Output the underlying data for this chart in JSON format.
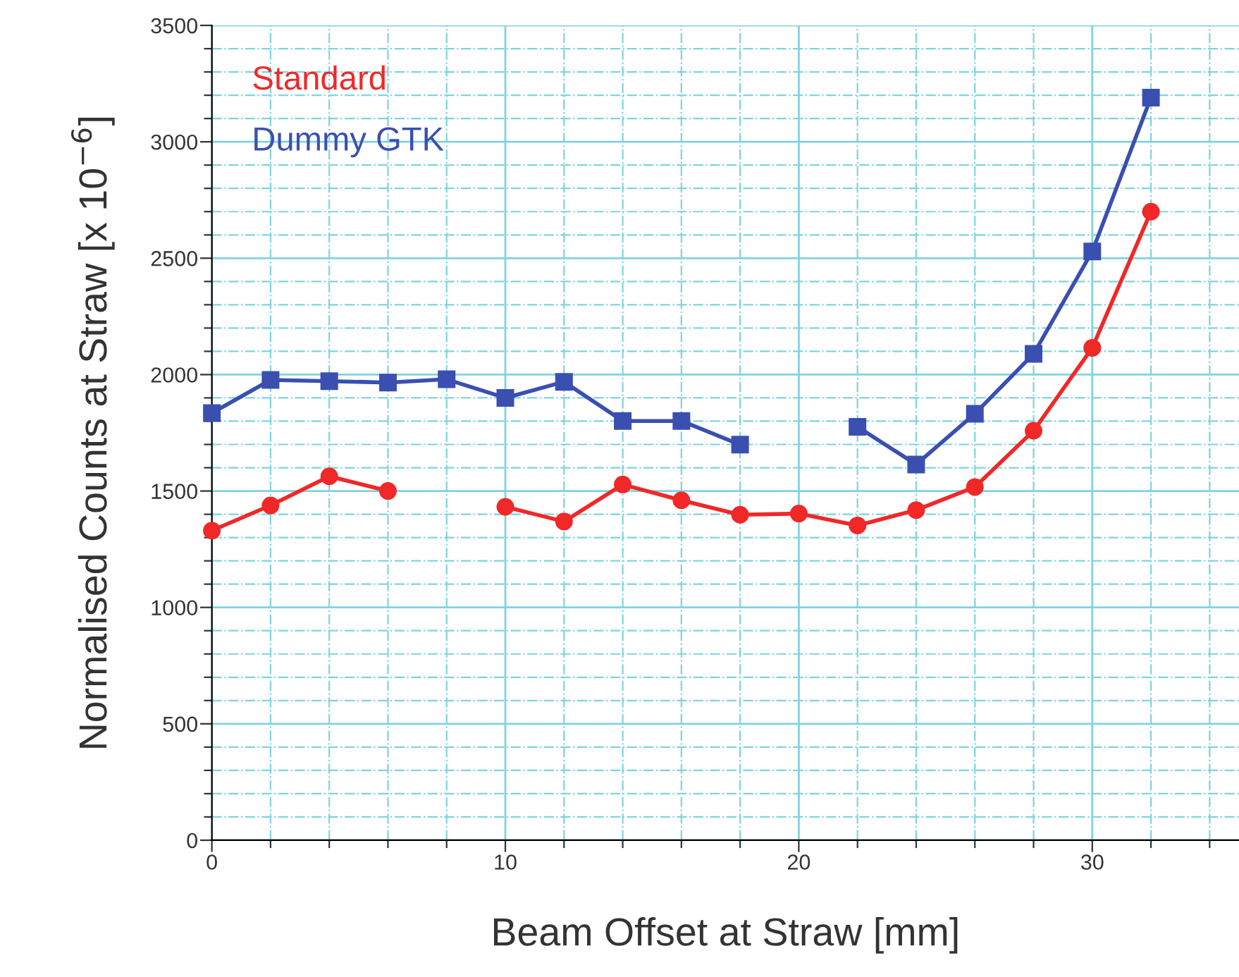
{
  "chart_data": {
    "type": "line",
    "xlabel": "Beam Offset at Straw [mm]",
    "ylabel": "Normalised Counts at Straw [x 10$^{−6}$]",
    "x": [
      0,
      2,
      4,
      6,
      8,
      10,
      12,
      14,
      16,
      18,
      20,
      22,
      24,
      26,
      28,
      30,
      32
    ],
    "series": [
      {
        "name": "Standard",
        "color": "#f02828",
        "marker": "circle",
        "values": [
          1330,
          1438,
          1563,
          1500,
          null,
          1432,
          1369,
          1528,
          1460,
          1398,
          1403,
          1352,
          1418,
          1517,
          1759,
          2115,
          2700
        ]
      },
      {
        "name": "Dummy GTK",
        "color": "#3a4fb0",
        "marker": "square",
        "values": [
          1835,
          1977,
          1972,
          1966,
          1980,
          1900,
          1969,
          1801,
          1801,
          1699,
          null,
          1776,
          1614,
          1832,
          2089,
          2529,
          3190
        ]
      }
    ],
    "xlim": [
      0,
      35
    ],
    "ylim": [
      0,
      3500
    ],
    "xticks": [
      0,
      {
        "value": 2,
        "label": null
      },
      {
        "value": 4,
        "label": null
      },
      {
        "value": 6,
        "label": null
      },
      {
        "value": 8,
        "label": null
      },
      10,
      {
        "value": 12,
        "label": null
      },
      {
        "value": 14,
        "label": null
      },
      {
        "value": 16,
        "label": null
      },
      {
        "value": 18,
        "label": null
      },
      20,
      {
        "value": 22,
        "label": null
      },
      {
        "value": 24,
        "label": null
      },
      {
        "value": 26,
        "label": null
      },
      {
        "value": 28,
        "label": null
      },
      30,
      {
        "value": 32,
        "label": null
      },
      {
        "value": 34,
        "label": null
      }
    ],
    "yticks": [
      0,
      {
        "value": 100,
        "label": null
      },
      {
        "value": 200,
        "label": null
      },
      {
        "value": 300,
        "label": null
      },
      {
        "value": 400,
        "label": null
      },
      500,
      {
        "value": 600,
        "label": null
      },
      {
        "value": 700,
        "label": null
      },
      {
        "value": 800,
        "label": null
      },
      {
        "value": 900,
        "label": null
      },
      1000,
      {
        "value": 1100,
        "label": null
      },
      {
        "value": 1200,
        "label": null
      },
      {
        "value": 1300,
        "label": null
      },
      {
        "value": 1400,
        "label": null
      },
      1500,
      {
        "value": 1600,
        "label": null
      },
      {
        "value": 1700,
        "label": null
      },
      {
        "value": 1800,
        "label": null
      },
      {
        "value": 1900,
        "label": null
      },
      2000,
      {
        "value": 2100,
        "label": null
      },
      {
        "value": 2200,
        "label": null
      },
      {
        "value": 2300,
        "label": null
      },
      {
        "value": 2400,
        "label": null
      },
      2500,
      {
        "value": 2600,
        "label": null
      },
      {
        "value": 2700,
        "label": null
      },
      {
        "value": 2800,
        "label": null
      },
      {
        "value": 2900,
        "label": null
      },
      3000,
      {
        "value": 3100,
        "label": null
      },
      {
        "value": 3200,
        "label": null
      },
      {
        "value": 3300,
        "label": null
      },
      {
        "value": 3400,
        "label": null
      },
      3500
    ],
    "grid": true,
    "legend": "top left",
    "line_style": "solid"
  }
}
